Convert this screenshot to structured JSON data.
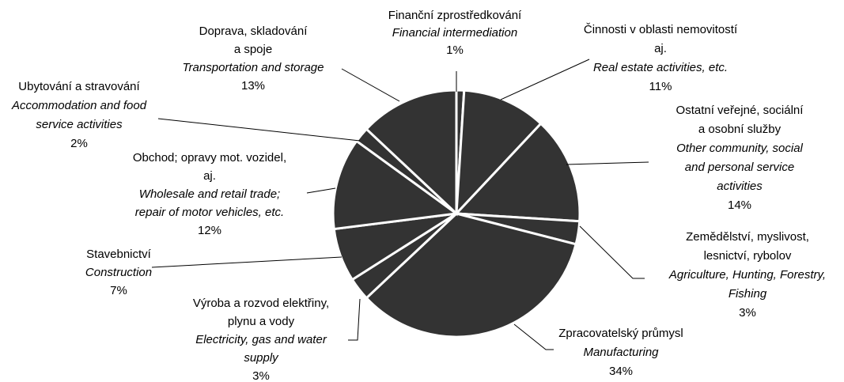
{
  "chart_data": {
    "type": "pie",
    "labels_cs": [
      [
        "Finanční zprostředkování"
      ],
      [
        "Činnosti v oblasti nemovitostí",
        "aj."
      ],
      [
        "Ostatní veřejné, sociální",
        "a osobní služby"
      ],
      [
        "Zemědělství, myslivost,",
        "lesnictví, rybolov"
      ],
      [
        "Zpracovatelský průmysl"
      ],
      [
        "Výroba a rozvod elektřiny,",
        "plynu a vody"
      ],
      [
        "Stavebnictví"
      ],
      [
        "Obchod; opravy mot. vozidel,",
        "aj."
      ],
      [
        "Ubytování a stravování"
      ],
      [
        "Doprava, skladování",
        "a spoje"
      ]
    ],
    "labels_en": [
      [
        "Financial intermediation"
      ],
      [
        "Real estate activities, etc."
      ],
      [
        "Other community, social",
        "and personal service",
        "activities"
      ],
      [
        "Agriculture, Hunting, Forestry,",
        "Fishing"
      ],
      [
        "Manufacturing"
      ],
      [
        "Electricity, gas and water",
        "supply"
      ],
      [
        "Construction"
      ],
      [
        "Wholesale and retail trade;",
        "repair of motor vehicles, etc."
      ],
      [
        "Accommodation and food",
        "service activities"
      ],
      [
        "Transportation and storage"
      ]
    ],
    "values": [
      1,
      11,
      14,
      3,
      34,
      3,
      7,
      12,
      2,
      13
    ],
    "value_labels": [
      "1%",
      "11%",
      "14%",
      "3%",
      "34%",
      "3%",
      "7%",
      "12%",
      "2%",
      "13%"
    ],
    "color": "#333333"
  }
}
